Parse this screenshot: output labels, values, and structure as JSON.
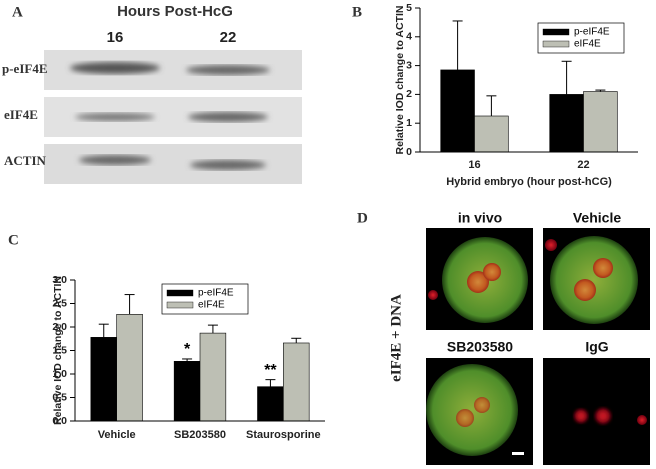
{
  "blot": {
    "label": "A",
    "title": "Hours Post-HcG",
    "lanes": [
      "16",
      "22"
    ],
    "rows": [
      "p-eIF4E",
      "eIF4E",
      "ACTIN"
    ]
  },
  "chart_data": [
    {
      "type": "bar",
      "label": "B",
      "ylabel": "Relative IOD change to ACTIN",
      "xlabel": "Hybrid embryo (hour post-hCG)",
      "categories": [
        "16",
        "22"
      ],
      "series": [
        {
          "name": "p-eIF4E",
          "color": "#000000",
          "values": [
            2.85,
            2.0
          ],
          "errors": [
            1.7,
            1.15
          ]
        },
        {
          "name": "eIF4E",
          "color": "#bdbfb4",
          "values": [
            1.25,
            2.1
          ],
          "errors": [
            0.7,
            0.05
          ]
        }
      ],
      "ylim": [
        0,
        5
      ],
      "yticks": [
        0,
        1,
        2,
        3,
        4,
        5
      ]
    },
    {
      "type": "bar",
      "label": "C",
      "ylabel": "Relative IOD change to ACTIN",
      "categories": [
        "Vehicle",
        "SB203580",
        "Staurosporine"
      ],
      "series": [
        {
          "name": "p-eIF4E",
          "color": "#000000",
          "values": [
            1.78,
            1.27,
            0.73
          ],
          "errors": [
            0.28,
            0.05,
            0.15
          ],
          "markers": [
            null,
            "*",
            "**"
          ]
        },
        {
          "name": "eIF4E",
          "color": "#bdbfb4",
          "values": [
            2.27,
            1.87,
            1.66
          ],
          "errors": [
            0.42,
            0.17,
            0.1
          ]
        }
      ],
      "ylim": [
        0,
        3
      ],
      "yticks": [
        {
          "value": 0,
          "label": "0.0"
        },
        0.5,
        {
          "value": 1,
          "label": "1.0"
        },
        1.5,
        {
          "value": 2,
          "label": "2.0"
        },
        2.5,
        {
          "value": 3,
          "label": "3.0"
        }
      ]
    }
  ],
  "imaging": {
    "label": "D",
    "stain": "eIF4E + DNA",
    "images": [
      "in vivo",
      "Vehicle",
      "SB203580",
      "IgG"
    ]
  }
}
